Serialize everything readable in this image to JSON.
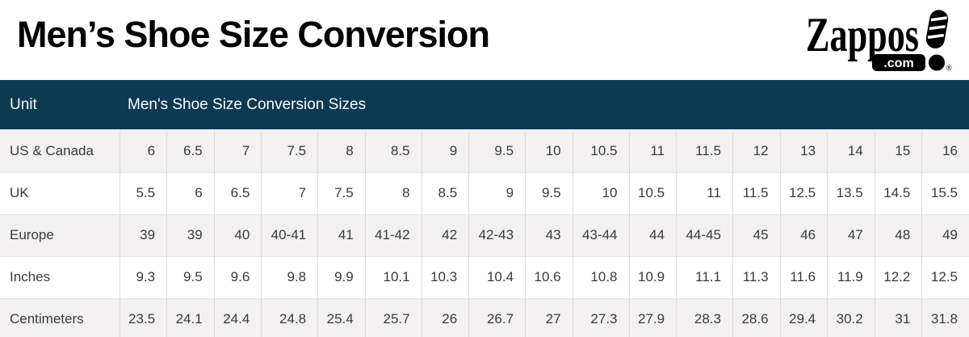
{
  "page": {
    "title": "Men’s Shoe Size Conversion"
  },
  "logo": {
    "brand": "Zappos",
    "tld": ".com",
    "registered": "®"
  },
  "table": {
    "unit_header": "Unit",
    "sizes_header": "Men's Shoe Size Conversion Sizes",
    "value_colspan": "17"
  },
  "colors": {
    "header_bg": "#0d3a52",
    "header_text": "#fafafa",
    "stripe_row_bg": "#f2f0f0",
    "white_row_bg": "#ffffff",
    "grid_border": "#dcdcdc",
    "cell_text": "#3a3a3a",
    "logo_black": "#000000"
  },
  "chart_data": {
    "type": "table",
    "title": "Men’s Shoe Size Conversion",
    "header_row": [
      "Unit",
      "Men's Shoe Size Conversion Sizes"
    ],
    "rows": [
      {
        "label": "US & Canada",
        "values": [
          "6",
          "6.5",
          "7",
          "7.5",
          "8",
          "8.5",
          "9",
          "9.5",
          "10",
          "10.5",
          "11",
          "11.5",
          "12",
          "13",
          "14",
          "15",
          "16"
        ]
      },
      {
        "label": "UK",
        "values": [
          "5.5",
          "6",
          "6.5",
          "7",
          "7.5",
          "8",
          "8.5",
          "9",
          "9.5",
          "10",
          "10.5",
          "11",
          "11.5",
          "12.5",
          "13.5",
          "14.5",
          "15.5"
        ]
      },
      {
        "label": "Europe",
        "values": [
          "39",
          "39",
          "40",
          "40-41",
          "41",
          "41-42",
          "42",
          "42-43",
          "43",
          "43-44",
          "44",
          "44-45",
          "45",
          "46",
          "47",
          "48",
          "49"
        ]
      },
      {
        "label": "Inches",
        "values": [
          "9.3",
          "9.5",
          "9.6",
          "9.8",
          "9.9",
          "10.1",
          "10.3",
          "10.4",
          "10.6",
          "10.8",
          "10.9",
          "11.1",
          "11.3",
          "11.6",
          "11.9",
          "12.2",
          "12.5"
        ]
      },
      {
        "label": "Centimeters",
        "values": [
          "23.5",
          "24.1",
          "24.4",
          "24.8",
          "25.4",
          "25.7",
          "26",
          "26.7",
          "27",
          "27.3",
          "27.9",
          "28.3",
          "28.6",
          "29.4",
          "30.2",
          "31",
          "31.8"
        ]
      }
    ]
  }
}
